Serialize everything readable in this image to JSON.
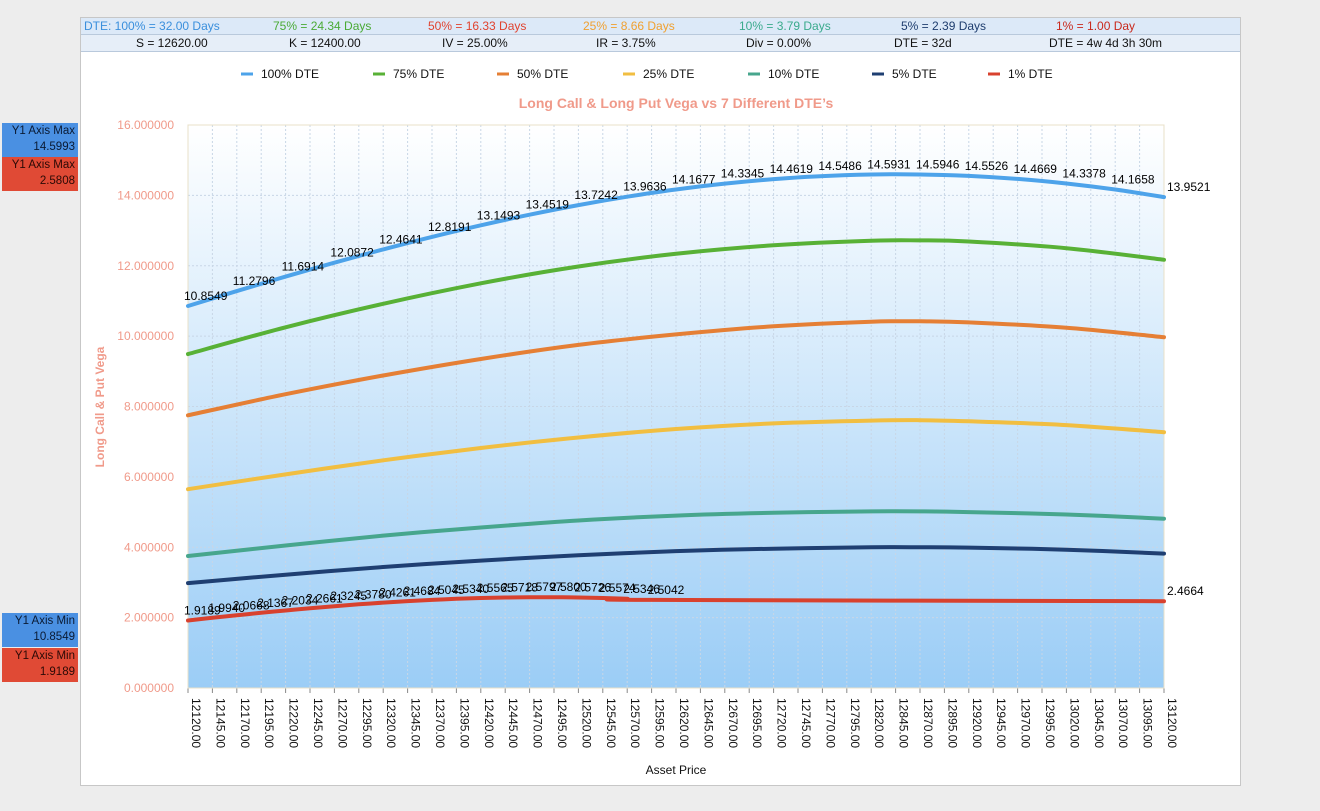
{
  "header_row1": [
    {
      "text": "DTE: 100% = 32.00 Days",
      "color": "#3a8fdc"
    },
    {
      "text": "75% = 24.34 Days",
      "color": "#4aaa35"
    },
    {
      "text": "50% = 16.33 Days",
      "color": "#e0432f"
    },
    {
      "text": "25% = 8.66 Days",
      "color": "#f0a030"
    },
    {
      "text": "10% = 3.79 Days",
      "color": "#3aaa8c"
    },
    {
      "text": "5% = 2.39 Days",
      "color": "#1e3d6e"
    },
    {
      "text": "1% = 1.00 Day",
      "color": "#c92a1e"
    }
  ],
  "header_row2": [
    "S = 12620.00",
    "K = 12400.00",
    "IV = 25.00%",
    "IR = 3.75%",
    "Div = 0.00%",
    "DTE = 32d",
    "DTE = 4w 4d 3h 30m"
  ],
  "side_labels": {
    "y1_max_blue": {
      "title": "Y1 Axis Max",
      "value": "14.5993"
    },
    "y1_max_red": {
      "title": "Y1 Axis Max",
      "value": "2.5808"
    },
    "y1_min_blue": {
      "title": "Y1 Axis Min",
      "value": "10.8549"
    },
    "y1_min_red": {
      "title": "Y1 Axis Min",
      "value": "1.9189"
    }
  },
  "chart_data": {
    "type": "line",
    "title": "Long Call & Long Put Vega vs 7 Different DTE’s",
    "xlabel": "Asset Price",
    "ylabel": "Long Call & Put Vega",
    "ylim": [
      0,
      16
    ],
    "yticks": [
      "0.000000",
      "2.000000",
      "4.000000",
      "6.000000",
      "8.000000",
      "10.000000",
      "12.000000",
      "14.000000",
      "16.000000"
    ],
    "x": [
      12120,
      12145,
      12170,
      12195,
      12220,
      12245,
      12270,
      12295,
      12320,
      12345,
      12370,
      12395,
      12420,
      12445,
      12470,
      12495,
      12520,
      12545,
      12570,
      12595,
      12620,
      12645,
      12670,
      12695,
      12720,
      12745,
      12770,
      12795,
      12820,
      12845,
      12870,
      12895,
      12920,
      12945,
      12970,
      12995,
      13020,
      13045,
      13070,
      13095,
      13120
    ],
    "x_tick_labels": [
      "12120.00",
      "12145.00",
      "12170.00",
      "12195.00",
      "12220.00",
      "12245.00",
      "12270.00",
      "12295.00",
      "12320.00",
      "12345.00",
      "12370.00",
      "12395.00",
      "12420.00",
      "12445.00",
      "12470.00",
      "12495.00",
      "12520.00",
      "12545.00",
      "12570.00",
      "12595.00",
      "12620.00",
      "12645.00",
      "12670.00",
      "12695.00",
      "12720.00",
      "12745.00",
      "12770.00",
      "12795.00",
      "12820.00",
      "12845.00",
      "12870.00",
      "12895.00",
      "12920.00",
      "12945.00",
      "12970.00",
      "12995.00",
      "13020.00",
      "13045.00",
      "13070.00",
      "13095.00",
      "13120.00"
    ],
    "grid": true,
    "legend_placement": "top",
    "series": [
      {
        "name": "100% DTE",
        "color": "#4da3ea",
        "points": [
          [
            12120,
            10.8549
          ],
          [
            12170,
            11.2796
          ],
          [
            12220,
            11.6914
          ],
          [
            12270,
            12.0872
          ],
          [
            12320,
            12.4641
          ],
          [
            12370,
            12.8191
          ],
          [
            12420,
            13.1493
          ],
          [
            12470,
            13.4519
          ],
          [
            12520,
            13.7242
          ],
          [
            12570,
            13.9636
          ],
          [
            12620,
            14.1677
          ],
          [
            12670,
            14.3345
          ],
          [
            12720,
            14.4619
          ],
          [
            12770,
            14.5486
          ],
          [
            12820,
            14.5931
          ],
          [
            12870,
            14.5946
          ],
          [
            12920,
            14.5526
          ],
          [
            12970,
            14.4669
          ],
          [
            13020,
            14.3378
          ],
          [
            13070,
            14.1658
          ],
          [
            13120,
            13.9521
          ]
        ],
        "labels": [
          "10.8549",
          "11.2796",
          "11.6914",
          "12.0872",
          "12.4641",
          "12.8191",
          "13.1493",
          "13.4519",
          "13.7242",
          "13.9636",
          "14.1677",
          "14.3345",
          "14.4619",
          "14.5486",
          "14.5931",
          "14.5946",
          "14.5526",
          "14.4669",
          "14.3378",
          "14.1658",
          "13.9521"
        ]
      },
      {
        "name": "75% DTE",
        "color": "#58b136",
        "points": [
          [
            12120,
            9.49
          ],
          [
            12220,
            10.25
          ],
          [
            12320,
            10.92
          ],
          [
            12420,
            11.5
          ],
          [
            12520,
            11.98
          ],
          [
            12620,
            12.34
          ],
          [
            12720,
            12.58
          ],
          [
            12820,
            12.71
          ],
          [
            12870,
            12.72
          ],
          [
            12920,
            12.69
          ],
          [
            13020,
            12.5
          ],
          [
            13120,
            12.17
          ]
        ]
      },
      {
        "name": "50% DTE",
        "color": "#e57f35",
        "points": [
          [
            12120,
            7.75
          ],
          [
            12220,
            8.35
          ],
          [
            12320,
            8.88
          ],
          [
            12420,
            9.35
          ],
          [
            12520,
            9.75
          ],
          [
            12620,
            10.05
          ],
          [
            12720,
            10.28
          ],
          [
            12820,
            10.41
          ],
          [
            12870,
            10.42
          ],
          [
            12920,
            10.39
          ],
          [
            13020,
            10.24
          ],
          [
            13120,
            9.97
          ]
        ]
      },
      {
        "name": "25% DTE",
        "color": "#f1be41",
        "points": [
          [
            12120,
            5.65
          ],
          [
            12220,
            6.07
          ],
          [
            12320,
            6.47
          ],
          [
            12420,
            6.82
          ],
          [
            12520,
            7.12
          ],
          [
            12620,
            7.36
          ],
          [
            12720,
            7.52
          ],
          [
            12820,
            7.6
          ],
          [
            12870,
            7.61
          ],
          [
            12920,
            7.58
          ],
          [
            13020,
            7.47
          ],
          [
            13120,
            7.27
          ]
        ]
      },
      {
        "name": "10% DTE",
        "color": "#47a68d",
        "points": [
          [
            12120,
            3.75
          ],
          [
            12220,
            4.05
          ],
          [
            12320,
            4.33
          ],
          [
            12420,
            4.56
          ],
          [
            12520,
            4.76
          ],
          [
            12620,
            4.9
          ],
          [
            12720,
            4.98
          ],
          [
            12820,
            5.02
          ],
          [
            12870,
            5.02
          ],
          [
            12920,
            5.0
          ],
          [
            13020,
            4.93
          ],
          [
            13120,
            4.81
          ]
        ]
      },
      {
        "name": "5% DTE",
        "color": "#1f3f72",
        "points": [
          [
            12120,
            2.98
          ],
          [
            12220,
            3.22
          ],
          [
            12320,
            3.44
          ],
          [
            12420,
            3.62
          ],
          [
            12520,
            3.77
          ],
          [
            12620,
            3.89
          ],
          [
            12720,
            3.96
          ],
          [
            12820,
            4.0
          ],
          [
            12870,
            4.0
          ],
          [
            12920,
            3.99
          ],
          [
            13020,
            3.93
          ],
          [
            13120,
            3.82
          ]
        ]
      },
      {
        "name": "1% DTE",
        "color": "#d8412e",
        "points": [
          [
            12120,
            1.9189
          ],
          [
            12145,
            1.994
          ],
          [
            12170,
            2.0668
          ],
          [
            12195,
            2.1367
          ],
          [
            12220,
            2.2034
          ],
          [
            12245,
            2.2661
          ],
          [
            12270,
            2.3245
          ],
          [
            12295,
            2.378
          ],
          [
            12320,
            2.4261
          ],
          [
            12345,
            2.4684
          ],
          [
            12370,
            2.5045
          ],
          [
            12395,
            2.534
          ],
          [
            12420,
            2.5565
          ],
          [
            12445,
            2.5718
          ],
          [
            12470,
            2.5797
          ],
          [
            12495,
            2.58
          ],
          [
            12520,
            2.5726
          ],
          [
            12545,
            2.5574
          ],
          [
            12570,
            2.5346
          ],
          [
            12595,
            2.5042
          ],
          [
            13120,
            2.4664
          ]
        ],
        "labels": [
          "1.9189",
          "1.9940",
          "2.0668",
          "2.1367",
          "2.2034",
          "2.2661",
          "2.3245",
          "2.3780",
          "2.4261",
          "2.4684",
          "2.5045",
          "2.5340",
          "2.5565",
          "2.5718",
          "2.5797",
          "2.5800",
          "2.5726",
          "2.5574",
          "2.5346",
          "2.5042",
          "2.4664"
        ]
      }
    ]
  }
}
